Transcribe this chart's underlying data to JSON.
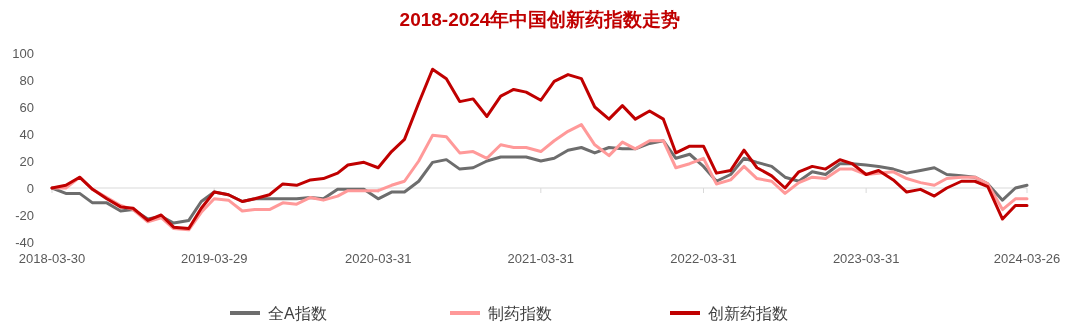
{
  "chart_data": {
    "type": "line",
    "title": "2018-2024年中国创新药指数走势",
    "x": [
      "2018-03-30",
      "2018-04-30",
      "2018-05-31",
      "2018-06-29",
      "2018-07-31",
      "2018-08-31",
      "2018-09-28",
      "2018-10-31",
      "2018-11-30",
      "2018-12-28",
      "2019-01-31",
      "2019-02-28",
      "2019-03-29",
      "2019-04-30",
      "2019-05-31",
      "2019-06-28",
      "2019-07-31",
      "2019-08-30",
      "2019-09-30",
      "2019-10-31",
      "2019-11-29",
      "2019-12-31",
      "2020-01-23",
      "2020-02-28",
      "2020-03-31",
      "2020-04-30",
      "2020-05-29",
      "2020-06-30",
      "2020-07-31",
      "2020-08-31",
      "2020-09-30",
      "2020-10-30",
      "2020-11-30",
      "2020-12-31",
      "2021-01-29",
      "2021-02-26",
      "2021-03-31",
      "2021-04-30",
      "2021-05-31",
      "2021-06-30",
      "2021-07-30",
      "2021-08-31",
      "2021-09-30",
      "2021-10-29",
      "2021-11-30",
      "2021-12-31",
      "2022-01-28",
      "2022-02-28",
      "2022-03-31",
      "2022-04-29",
      "2022-05-31",
      "2022-06-30",
      "2022-07-29",
      "2022-08-31",
      "2022-09-30",
      "2022-10-31",
      "2022-11-30",
      "2022-12-30",
      "2023-01-31",
      "2023-02-28",
      "2023-03-31",
      "2023-04-28",
      "2023-05-31",
      "2023-06-30",
      "2023-07-31",
      "2023-08-31",
      "2023-09-28",
      "2023-10-31",
      "2023-11-30",
      "2023-12-29",
      "2024-01-31",
      "2024-02-29",
      "2024-03-26"
    ],
    "series": [
      {
        "name": "全A指数",
        "color": "#6d6d6d",
        "values": [
          0,
          -4,
          -4,
          -11,
          -11,
          -17,
          -16,
          -23,
          -21,
          -26,
          -24,
          -10,
          -3,
          -5,
          -10,
          -8,
          -8,
          -8,
          -8,
          -7,
          -8,
          -1,
          -1,
          -1,
          -8,
          -3,
          -3,
          5,
          19,
          21,
          14,
          15,
          20,
          23,
          23,
          23,
          20,
          22,
          28,
          30,
          26,
          30,
          29,
          29,
          33,
          35,
          22,
          25,
          16,
          5,
          10,
          22,
          19,
          16,
          8,
          5,
          12,
          10,
          18,
          18,
          17,
          16,
          14,
          11,
          13,
          15,
          10,
          9,
          8,
          3,
          -9,
          0,
          2
        ]
      },
      {
        "name": "制药指数",
        "color": "#ff9999",
        "values": [
          0,
          0,
          8,
          -1,
          -7,
          -13,
          -16,
          -25,
          -22,
          -30,
          -31,
          -18,
          -8,
          -9,
          -17,
          -16,
          -16,
          -11,
          -12,
          -7,
          -9,
          -6,
          -2,
          -2,
          -2,
          2,
          5,
          20,
          39,
          38,
          26,
          27,
          22,
          32,
          30,
          30,
          27,
          35,
          42,
          47,
          32,
          24,
          34,
          29,
          35,
          35,
          15,
          18,
          22,
          3,
          6,
          16,
          7,
          5,
          -4,
          4,
          8,
          7,
          14,
          14,
          10,
          11,
          12,
          7,
          4,
          2,
          7,
          8,
          8,
          3,
          -16,
          -8,
          -8
        ]
      },
      {
        "name": "创新药指数",
        "color": "#c00000",
        "values": [
          0,
          2,
          8,
          -1,
          -8,
          -14,
          -15,
          -24,
          -20,
          -29,
          -30,
          -15,
          -3,
          -5,
          -10,
          -8,
          -5,
          3,
          2,
          6,
          7,
          11,
          17,
          19,
          15,
          27,
          36,
          63,
          88,
          81,
          64,
          66,
          53,
          68,
          73,
          71,
          65,
          79,
          84,
          81,
          60,
          51,
          61,
          51,
          57,
          51,
          26,
          31,
          31,
          11,
          13,
          28,
          15,
          9,
          0,
          12,
          16,
          14,
          21,
          18,
          10,
          13,
          6,
          -3,
          -1,
          -6,
          0,
          5,
          5,
          1,
          -23,
          -13,
          -13
        ]
      }
    ],
    "xlim": [
      "2018-03-30",
      "2024-03-26"
    ],
    "xticks": [
      "2018-03-30",
      "2019-03-29",
      "2020-03-31",
      "2021-03-31",
      "2022-03-31",
      "2023-03-31",
      "2024-03-26"
    ],
    "ylim": [
      -40,
      100
    ],
    "yticks": [
      -40,
      -20,
      0,
      20,
      40,
      60,
      80,
      100
    ],
    "ref_lines": [
      {
        "axis": "y",
        "value": 0,
        "color": "#d9d9d9"
      }
    ],
    "legend": "bottom",
    "grid": false,
    "line_style": "solid",
    "marker": "none"
  }
}
